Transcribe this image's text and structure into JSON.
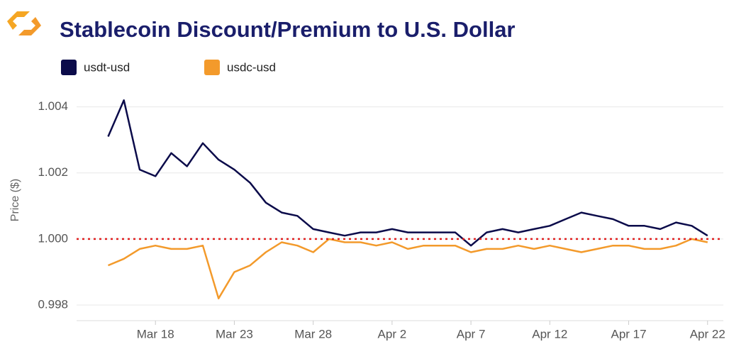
{
  "chart_data": {
    "type": "line",
    "title": "Stablecoin Discount/Premium to U.S. Dollar",
    "y_label": "Price ($)",
    "x": [
      "Mar 15",
      "Mar 16",
      "Mar 17",
      "Mar 18",
      "Mar 19",
      "Mar 20",
      "Mar 21",
      "Mar 22",
      "Mar 23",
      "Mar 24",
      "Mar 25",
      "Mar 26",
      "Mar 27",
      "Mar 28",
      "Mar 29",
      "Mar 30",
      "Mar 31",
      "Apr 1",
      "Apr 2",
      "Apr 3",
      "Apr 4",
      "Apr 5",
      "Apr 6",
      "Apr 7",
      "Apr 8",
      "Apr 9",
      "Apr 10",
      "Apr 11",
      "Apr 12",
      "Apr 13",
      "Apr 14",
      "Apr 15",
      "Apr 16",
      "Apr 17",
      "Apr 18",
      "Apr 19",
      "Apr 20",
      "Apr 21",
      "Apr 22"
    ],
    "series": [
      {
        "name": "usdt-usd",
        "color": "#0b0b4a",
        "values": [
          1.0031,
          1.0042,
          1.0021,
          1.0019,
          1.0026,
          1.0022,
          1.0029,
          1.0024,
          1.0021,
          1.0017,
          1.0011,
          1.0008,
          1.0007,
          1.0003,
          1.0002,
          1.0001,
          1.0002,
          1.0002,
          1.0003,
          1.0002,
          1.0002,
          1.0002,
          1.0002,
          0.9998,
          1.0002,
          1.0003,
          1.0002,
          1.0003,
          1.0004,
          1.0006,
          1.0008,
          1.0007,
          1.0006,
          1.0004,
          1.0004,
          1.0003,
          1.0005,
          1.0004,
          1.0001
        ]
      },
      {
        "name": "usdc-usd",
        "color": "#f39a2b",
        "values": [
          0.9992,
          0.9994,
          0.9997,
          0.9998,
          0.9997,
          0.9997,
          0.9998,
          0.9982,
          0.999,
          0.9992,
          0.9996,
          0.9999,
          0.9998,
          0.9996,
          1.0,
          0.9999,
          0.9999,
          0.9998,
          0.9999,
          0.9997,
          0.9998,
          0.9998,
          0.9998,
          0.9996,
          0.9997,
          0.9997,
          0.9998,
          0.9997,
          0.9998,
          0.9997,
          0.9996,
          0.9997,
          0.9998,
          0.9998,
          0.9997,
          0.9997,
          0.9998,
          1.0,
          0.9999
        ]
      }
    ],
    "xlim": [
      "Mar 13",
      "Apr 23"
    ],
    "xticks": [
      "Mar 18",
      "Mar 23",
      "Mar 28",
      "Apr 2",
      "Apr 7",
      "Apr 12",
      "Apr 17",
      "Apr 22"
    ],
    "ylim": [
      0.9977,
      1.0047
    ],
    "yticks": [
      0.998,
      {
        "value": 1.0,
        "label": "1.000"
      },
      1.002,
      1.004
    ],
    "reference_line": {
      "value": 1.0,
      "color": "#e02020"
    },
    "grid": true
  }
}
